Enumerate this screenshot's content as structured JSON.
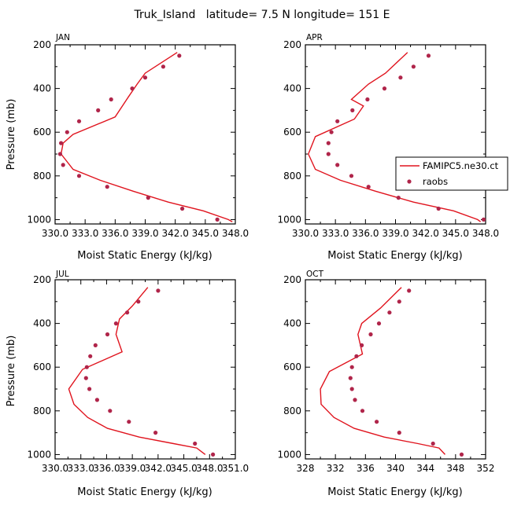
{
  "figure_title": "Truk_Island   latitude= 7.5 N longitude= 151 E",
  "legend": {
    "model_label": "FAMIPC5.ne30.ct",
    "obs_label": "raobs"
  },
  "colors": {
    "model": "#e0141e",
    "obs": "#b0254a"
  },
  "chart_data": [
    {
      "type": "line",
      "panel": "JAN",
      "title": "JAN",
      "xlabel": "Moist Static Energy (kJ/kg)",
      "ylabel": "Pressure (mb)",
      "xlim": [
        330,
        348
      ],
      "ylim": [
        1020,
        200
      ],
      "xticks": [
        330,
        333,
        336,
        339,
        342,
        345,
        348
      ],
      "xtick_labels": [
        "330.0",
        "333.0",
        "336.0",
        "339.0",
        "342.0",
        "345.0",
        "348.0"
      ],
      "yticks": [
        200,
        400,
        600,
        800,
        1000
      ],
      "ytick_labels": [
        "200",
        "400",
        "600",
        "800",
        "1000"
      ],
      "series": [
        {
          "name": "FAMIPC5.ne30.ct",
          "kind": "line",
          "x": [
            342.2,
            339.0,
            338.2,
            337.3,
            336.0,
            331.8,
            330.8,
            330.6,
            331.8,
            334.5,
            337.8,
            341.3,
            344.8,
            347.3,
            347.7
          ],
          "y": [
            235,
            330,
            380,
            440,
            530,
            610,
            650,
            700,
            770,
            820,
            870,
            920,
            960,
            1000,
            1010
          ]
        },
        {
          "name": "raobs",
          "kind": "scatter",
          "x": [
            342.4,
            340.8,
            339.0,
            337.7,
            335.6,
            334.3,
            332.4,
            331.2,
            330.6,
            330.5,
            330.8,
            332.4,
            335.2,
            339.3,
            342.7,
            346.2
          ],
          "y": [
            250,
            300,
            350,
            400,
            450,
            500,
            550,
            600,
            650,
            700,
            750,
            800,
            850,
            900,
            950,
            1000
          ]
        }
      ]
    },
    {
      "type": "line",
      "panel": "APR",
      "title": "APR",
      "xlabel": "Moist Static Energy (kJ/kg)",
      "ylabel": "",
      "xlim": [
        330,
        348
      ],
      "ylim": [
        1020,
        200
      ],
      "xticks": [
        330,
        333,
        336,
        339,
        342,
        345,
        348
      ],
      "xtick_labels": [
        "330.0",
        "333.0",
        "336.0",
        "339.0",
        "342.0",
        "345.0",
        "348.0"
      ],
      "yticks": [
        200,
        400,
        600,
        800,
        1000
      ],
      "ytick_labels": [
        "200",
        "400",
        "600",
        "800",
        "1000"
      ],
      "series": [
        {
          "name": "FAMIPC5.ne30.ct",
          "kind": "line",
          "x": [
            340.2,
            338.0,
            336.3,
            334.6,
            335.8,
            334.9,
            331.0,
            330.3,
            331.0,
            333.5,
            337.0,
            340.8,
            344.8,
            347.2,
            347.5
          ],
          "y": [
            235,
            330,
            380,
            450,
            480,
            540,
            620,
            700,
            770,
            820,
            870,
            920,
            960,
            1000,
            1010
          ]
        },
        {
          "name": "raobs",
          "kind": "scatter",
          "x": [
            342.3,
            340.8,
            339.5,
            337.9,
            336.2,
            334.7,
            333.2,
            332.6,
            332.3,
            332.3,
            333.2,
            334.6,
            336.3,
            339.3,
            343.3,
            347.8
          ],
          "y": [
            250,
            300,
            350,
            400,
            450,
            500,
            550,
            600,
            650,
            700,
            750,
            800,
            850,
            900,
            950,
            1000
          ]
        }
      ]
    },
    {
      "type": "line",
      "panel": "JUL",
      "title": "JUL",
      "xlabel": "Moist Static Energy (kJ/kg)",
      "ylabel": "Pressure (mb)",
      "xlim": [
        330,
        351
      ],
      "ylim": [
        1020,
        200
      ],
      "xticks": [
        330,
        333,
        336,
        339,
        342,
        345,
        348,
        351
      ],
      "xtick_labels": [
        "330.0",
        "333.0",
        "336.0",
        "339.0",
        "342.0",
        "345.0",
        "348.0",
        "351.0"
      ],
      "yticks": [
        200,
        400,
        600,
        800,
        1000
      ],
      "ytick_labels": [
        "200",
        "400",
        "600",
        "800",
        "1000"
      ],
      "series": [
        {
          "name": "FAMIPC5.ne30.ct",
          "kind": "line",
          "x": [
            340.8,
            339.0,
            337.5,
            337.1,
            337.8,
            333.2,
            331.6,
            332.2,
            333.8,
            336.1,
            339.8,
            343.8,
            346.5,
            347.5
          ],
          "y": [
            235,
            320,
            380,
            450,
            530,
            610,
            700,
            770,
            830,
            880,
            920,
            950,
            970,
            1000
          ]
        },
        {
          "name": "raobs",
          "kind": "scatter",
          "x": [
            342.0,
            339.7,
            338.4,
            337.1,
            336.1,
            334.7,
            334.1,
            333.7,
            333.6,
            334.0,
            334.9,
            336.4,
            338.6,
            341.7,
            346.3,
            348.4
          ],
          "y": [
            250,
            300,
            350,
            400,
            450,
            500,
            550,
            600,
            650,
            700,
            750,
            800,
            850,
            900,
            950,
            1000
          ]
        }
      ]
    },
    {
      "type": "line",
      "panel": "OCT",
      "title": "OCT",
      "xlabel": "Moist Static Energy (kJ/kg)",
      "ylabel": "",
      "xlim": [
        328,
        352
      ],
      "ylim": [
        1020,
        200
      ],
      "xticks": [
        328,
        332,
        336,
        340,
        344,
        348,
        352
      ],
      "xtick_labels": [
        "328",
        "332",
        "336",
        "340",
        "344",
        "348",
        "352"
      ],
      "yticks": [
        200,
        400,
        600,
        800,
        1000
      ],
      "ytick_labels": [
        "200",
        "400",
        "600",
        "800",
        "1000"
      ],
      "series": [
        {
          "name": "FAMIPC5.ne30.ct",
          "kind": "line",
          "x": [
            340.8,
            338.0,
            335.5,
            335.0,
            335.6,
            331.2,
            330.0,
            330.1,
            331.8,
            334.5,
            338.5,
            343.0,
            345.8,
            346.6
          ],
          "y": [
            235,
            330,
            400,
            450,
            540,
            620,
            700,
            770,
            830,
            880,
            920,
            950,
            970,
            1000
          ]
        },
        {
          "name": "raobs",
          "kind": "scatter",
          "x": [
            341.8,
            340.5,
            339.2,
            337.8,
            336.7,
            335.5,
            334.8,
            334.2,
            334.0,
            334.2,
            334.6,
            335.6,
            337.5,
            340.5,
            345.0,
            348.8
          ],
          "y": [
            250,
            300,
            350,
            400,
            450,
            500,
            550,
            600,
            650,
            700,
            750,
            800,
            850,
            900,
            950,
            1000
          ]
        }
      ]
    }
  ]
}
